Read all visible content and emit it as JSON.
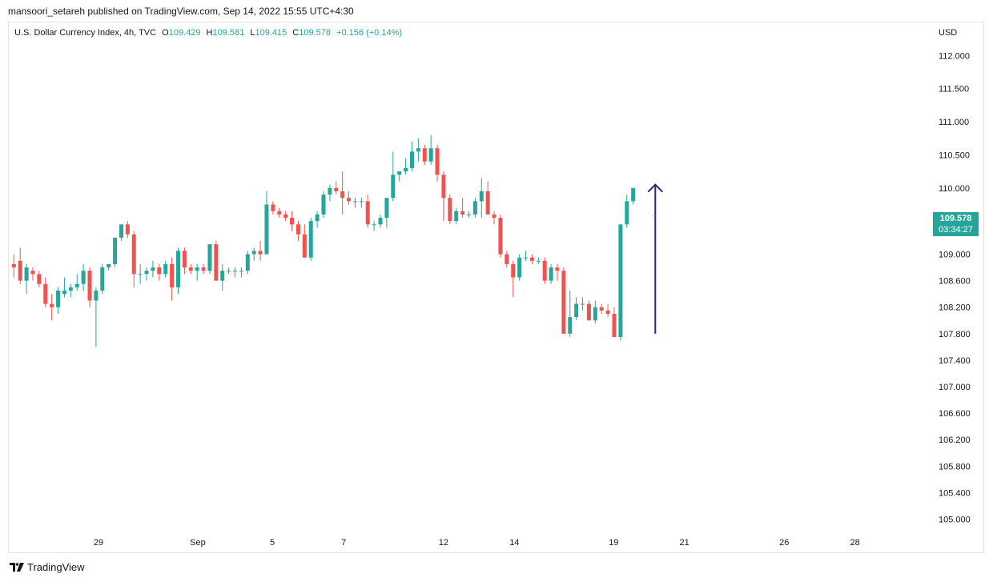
{
  "header": {
    "publish_line": "mansoori_setareh published on TradingView.com, Sep 14, 2022 15:55 UTC+4:30"
  },
  "legend": {
    "symbol": "U.S. Dollar Currency Index, 4h, TVC",
    "o_label": "O",
    "o_value": "109.429",
    "h_label": "H",
    "h_value": "109.581",
    "l_label": "L",
    "l_value": "109.415",
    "c_label": "C",
    "c_value": "109.578",
    "change": "+0.156 (+0.14%)"
  },
  "axis_currency": "USD",
  "price_tag": {
    "price": "109.578",
    "countdown": "03:34:27"
  },
  "brand": {
    "name": "TradingView"
  },
  "colors": {
    "up": "#26a69a",
    "down": "#ef5350",
    "arrow": "#3b1a78",
    "grid": "#e0e3eb"
  },
  "chart_data": {
    "type": "candlestick",
    "title": "U.S. Dollar Currency Index, 4h, TVC",
    "ylim": [
      104.8,
      112.5
    ],
    "y_ticks": [
      "112.000",
      "111.500",
      "111.000",
      "110.500",
      "110.000",
      "109.000",
      "108.600",
      "108.200",
      "107.800",
      "107.400",
      "107.000",
      "106.600",
      "106.200",
      "105.800",
      "105.400",
      "105.000"
    ],
    "x_ticks": [
      {
        "label": "29",
        "index": 13.4
      },
      {
        "label": "Sep",
        "index": 29.1
      },
      {
        "label": "5",
        "index": 40.9
      },
      {
        "label": "7",
        "index": 52.2
      },
      {
        "label": "12",
        "index": 68.0
      },
      {
        "label": "14",
        "index": 79.2
      },
      {
        "label": "19",
        "index": 94.9
      },
      {
        "label": "21",
        "index": 106.1
      },
      {
        "label": "26",
        "index": 121.9
      },
      {
        "label": "28",
        "index": 133.1
      }
    ],
    "index_range": [
      -0.8,
      144.8
    ],
    "candles": [
      [
        108.85,
        109.0,
        108.65,
        108.8
      ],
      [
        108.9,
        109.1,
        108.55,
        108.6
      ],
      [
        108.6,
        108.85,
        108.4,
        108.8
      ],
      [
        108.75,
        108.8,
        108.6,
        108.7
      ],
      [
        108.7,
        108.75,
        108.5,
        108.55
      ],
      [
        108.55,
        108.65,
        108.2,
        108.25
      ],
      [
        108.25,
        108.4,
        108.0,
        108.2
      ],
      [
        108.2,
        108.5,
        108.1,
        108.45
      ],
      [
        108.4,
        108.65,
        108.35,
        108.45
      ],
      [
        108.45,
        108.55,
        108.35,
        108.5
      ],
      [
        108.5,
        108.7,
        108.45,
        108.55
      ],
      [
        108.55,
        108.85,
        108.45,
        108.75
      ],
      [
        108.75,
        108.8,
        108.2,
        108.3
      ],
      [
        108.3,
        108.5,
        107.6,
        108.45
      ],
      [
        108.45,
        108.85,
        108.4,
        108.8
      ],
      [
        108.8,
        108.85,
        108.75,
        108.85
      ],
      [
        108.85,
        109.25,
        108.8,
        109.25
      ],
      [
        109.25,
        109.45,
        109.2,
        109.45
      ],
      [
        109.45,
        109.5,
        109.25,
        109.3
      ],
      [
        109.3,
        109.35,
        108.5,
        108.7
      ],
      [
        108.7,
        108.85,
        108.55,
        108.7
      ],
      [
        108.7,
        108.8,
        108.6,
        108.75
      ],
      [
        108.75,
        108.9,
        108.65,
        108.8
      ],
      [
        108.8,
        108.85,
        108.6,
        108.7
      ],
      [
        108.7,
        108.9,
        108.65,
        108.85
      ],
      [
        108.85,
        108.95,
        108.3,
        108.5
      ],
      [
        108.5,
        109.1,
        108.4,
        109.05
      ],
      [
        109.05,
        109.1,
        108.7,
        108.8
      ],
      [
        108.8,
        108.85,
        108.7,
        108.75
      ],
      [
        108.75,
        108.85,
        108.6,
        108.8
      ],
      [
        108.8,
        108.85,
        108.7,
        108.75
      ],
      [
        108.75,
        109.15,
        108.7,
        109.15
      ],
      [
        109.15,
        109.2,
        108.6,
        108.6
      ],
      [
        108.6,
        108.85,
        108.45,
        108.75
      ],
      [
        108.75,
        108.8,
        108.7,
        108.75
      ],
      [
        108.75,
        108.8,
        108.65,
        108.75
      ],
      [
        108.75,
        108.8,
        108.65,
        108.75
      ],
      [
        108.75,
        109.05,
        108.7,
        109.0
      ],
      [
        109.0,
        109.1,
        108.9,
        109.05
      ],
      [
        109.05,
        109.2,
        108.9,
        109.0
      ],
      [
        109.0,
        109.95,
        109.0,
        109.75
      ],
      [
        109.75,
        109.8,
        109.6,
        109.65
      ],
      [
        109.65,
        109.7,
        109.55,
        109.6
      ],
      [
        109.6,
        109.65,
        109.5,
        109.55
      ],
      [
        109.55,
        109.65,
        109.35,
        109.45
      ],
      [
        109.45,
        109.5,
        109.2,
        109.3
      ],
      [
        109.3,
        109.45,
        108.95,
        108.95
      ],
      [
        108.95,
        109.55,
        108.9,
        109.5
      ],
      [
        109.5,
        109.65,
        109.4,
        109.6
      ],
      [
        109.6,
        109.95,
        109.55,
        109.9
      ],
      [
        109.9,
        110.05,
        109.8,
        110.0
      ],
      [
        110.0,
        110.1,
        109.9,
        109.95
      ],
      [
        109.95,
        110.25,
        109.6,
        109.85
      ],
      [
        109.85,
        109.95,
        109.75,
        109.8
      ],
      [
        109.8,
        109.85,
        109.7,
        109.8
      ],
      [
        109.8,
        109.85,
        109.7,
        109.8
      ],
      [
        109.8,
        109.9,
        109.4,
        109.45
      ],
      [
        109.45,
        109.5,
        109.35,
        109.45
      ],
      [
        109.45,
        109.6,
        109.4,
        109.55
      ],
      [
        109.55,
        109.85,
        109.4,
        109.85
      ],
      [
        109.85,
        110.55,
        109.8,
        110.2
      ],
      [
        110.2,
        110.25,
        110.1,
        110.25
      ],
      [
        110.25,
        110.45,
        110.2,
        110.3
      ],
      [
        110.3,
        110.7,
        110.25,
        110.55
      ],
      [
        110.55,
        110.75,
        110.4,
        110.6
      ],
      [
        110.6,
        110.65,
        110.35,
        110.4
      ],
      [
        110.4,
        110.8,
        110.35,
        110.6
      ],
      [
        110.6,
        110.65,
        110.1,
        110.2
      ],
      [
        110.2,
        110.25,
        109.5,
        109.85
      ],
      [
        109.85,
        109.9,
        109.45,
        109.5
      ],
      [
        109.5,
        109.7,
        109.45,
        109.65
      ],
      [
        109.65,
        109.85,
        109.55,
        109.6
      ],
      [
        109.6,
        109.65,
        109.55,
        109.6
      ],
      [
        109.6,
        109.85,
        109.55,
        109.8
      ],
      [
        109.8,
        110.15,
        109.55,
        109.95
      ],
      [
        109.95,
        110.1,
        109.6,
        109.6
      ],
      [
        109.6,
        109.65,
        109.45,
        109.55
      ],
      [
        109.55,
        109.6,
        108.95,
        109.0
      ],
      [
        109.0,
        109.05,
        108.8,
        108.85
      ],
      [
        108.85,
        108.9,
        108.35,
        108.65
      ],
      [
        108.65,
        109.0,
        108.6,
        108.95
      ],
      [
        108.95,
        109.05,
        108.9,
        108.95
      ],
      [
        108.95,
        109.0,
        108.85,
        108.9
      ],
      [
        108.9,
        108.95,
        108.85,
        108.9
      ],
      [
        108.9,
        108.95,
        108.55,
        108.6
      ],
      [
        108.6,
        108.85,
        108.55,
        108.8
      ],
      [
        108.8,
        108.85,
        108.6,
        108.75
      ],
      [
        108.75,
        108.8,
        107.8,
        107.8
      ],
      [
        107.8,
        108.45,
        107.75,
        108.05
      ],
      [
        108.05,
        108.35,
        108.0,
        108.25
      ],
      [
        108.25,
        108.35,
        108.15,
        108.25
      ],
      [
        108.25,
        108.3,
        108.0,
        108.0
      ],
      [
        108.0,
        108.3,
        107.95,
        108.2
      ],
      [
        108.2,
        108.25,
        108.1,
        108.15
      ],
      [
        108.15,
        108.25,
        108.05,
        108.1
      ],
      [
        108.1,
        108.2,
        107.75,
        107.75
      ],
      [
        107.75,
        109.45,
        107.7,
        109.45
      ],
      [
        109.45,
        109.9,
        109.4,
        109.8
      ],
      [
        109.8,
        110.0,
        109.75,
        110.0
      ]
    ],
    "annotation": {
      "type": "arrow-up",
      "index": 101.5,
      "from": 107.8,
      "to": 110.05
    },
    "current_price": 109.578,
    "current_marker_index": 101.5
  }
}
